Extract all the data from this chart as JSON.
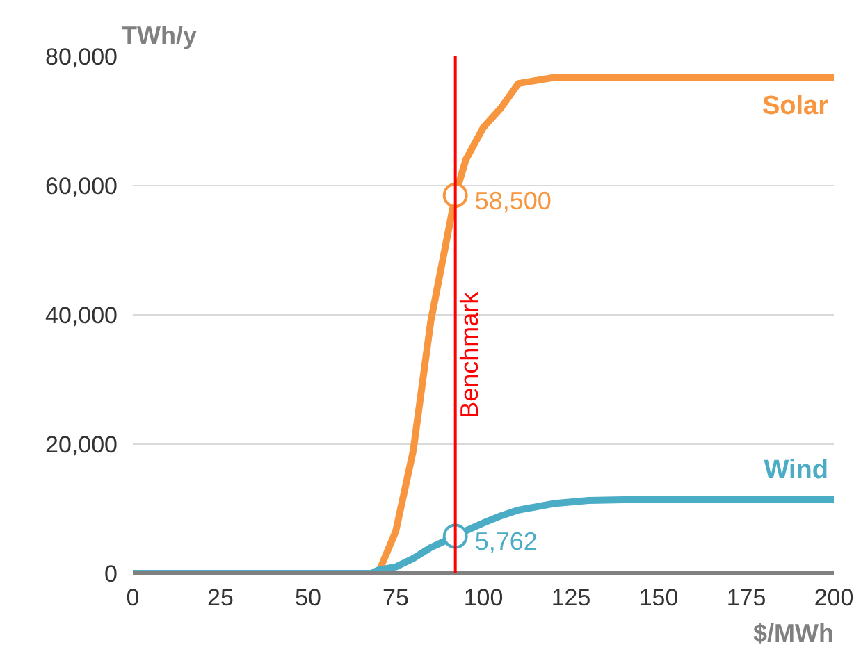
{
  "chart_data": {
    "type": "line",
    "xlabel": "$/MWh",
    "ylabel": "TWh/y",
    "x": [
      0,
      50,
      65,
      68,
      70,
      75,
      80,
      85,
      92,
      95,
      100,
      105,
      110,
      120,
      130,
      150,
      200
    ],
    "series": [
      {
        "name": "Solar",
        "color": "#f7963f",
        "x": [
          70,
          75,
          80,
          85,
          92,
          95,
          100,
          105,
          110,
          120,
          130,
          150,
          200
        ],
        "values": [
          0,
          6500,
          19000,
          39000,
          58500,
          64000,
          69000,
          72000,
          75800,
          76700,
          76700,
          76700,
          76700
        ]
      },
      {
        "name": "Wind",
        "color": "#4bacc6",
        "values": [
          0,
          0,
          0,
          0,
          500,
          1000,
          2300,
          4000,
          5762,
          6600,
          7800,
          8900,
          9800,
          10800,
          11300,
          11500,
          11500
        ]
      }
    ],
    "xlim": [
      0,
      200
    ],
    "xticks": [
      0,
      25,
      50,
      75,
      100,
      125,
      150,
      175,
      200
    ],
    "ylim": [
      0,
      80000
    ],
    "yticks": [
      {
        "value": 0,
        "label": "0"
      },
      {
        "value": 20000,
        "label": "20,000"
      },
      {
        "value": 40000,
        "label": "40,000"
      },
      {
        "value": 60000,
        "label": "60,000"
      },
      {
        "value": 80000,
        "label": "80,000"
      }
    ],
    "ref_lines": [
      {
        "axis": "x",
        "value": 92,
        "label": "Benchmark",
        "color": "#ff0000"
      }
    ],
    "annotations": [
      {
        "text": "58,500",
        "x": 92,
        "y": 58500
      },
      {
        "text": "5,762",
        "x": 92,
        "y": 5762
      }
    ],
    "grid": "y",
    "legend": false,
    "marker": "none",
    "line_style": "solid"
  }
}
